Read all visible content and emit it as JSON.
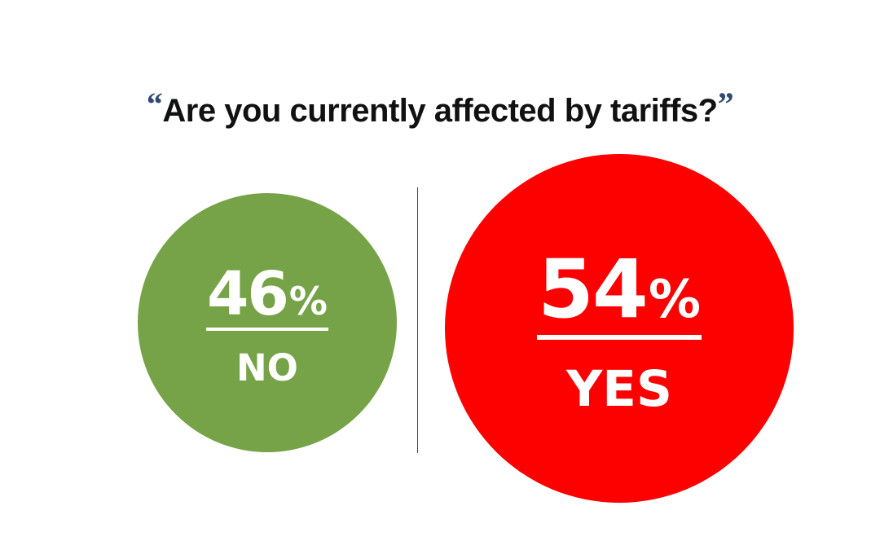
{
  "chart_data": {
    "type": "bubble",
    "title": "Are you currently affected by tariffs?",
    "open_quote": "“",
    "close_quote": "”",
    "categories": [
      "NO",
      "YES"
    ],
    "values": [
      46,
      54
    ],
    "unit": "%",
    "colors": [
      "#76a347",
      "#fd0000"
    ]
  }
}
